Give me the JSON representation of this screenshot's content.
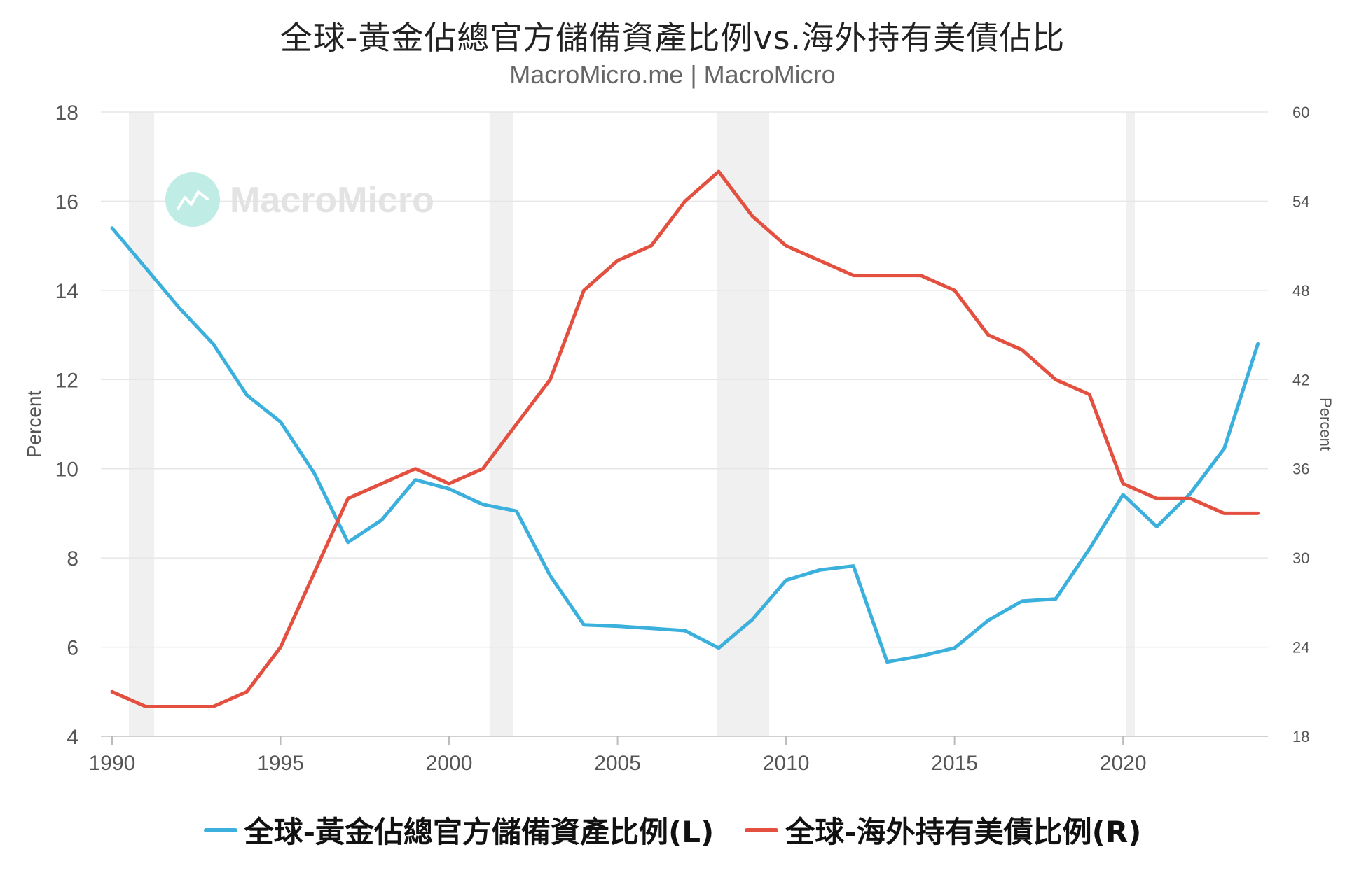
{
  "title": "全球-黃金佔總官方儲備資產比例vs.海外持有美債佔比",
  "subtitle": "MacroMicro.me | MacroMicro",
  "watermark": "MacroMicro",
  "chart_data": {
    "type": "line",
    "x": [
      1990,
      1991,
      1992,
      1993,
      1994,
      1995,
      1996,
      1997,
      1998,
      1999,
      2000,
      2001,
      2002,
      2003,
      2004,
      2005,
      2006,
      2007,
      2008,
      2009,
      2010,
      2011,
      2012,
      2013,
      2014,
      2015,
      2016,
      2017,
      2018,
      2019,
      2020,
      2021,
      2022,
      2023,
      2024
    ],
    "x_ticks": [
      "1990",
      "1995",
      "2000",
      "2005",
      "2010",
      "2015",
      "2020"
    ],
    "x_range": [
      1990,
      2024.3
    ],
    "y_left": {
      "label": "Percent",
      "range": [
        4,
        18
      ],
      "ticks": [
        "4",
        "6",
        "8",
        "10",
        "12",
        "14",
        "16",
        "18"
      ]
    },
    "y_right": {
      "label": "Percent",
      "range": [
        18,
        60
      ],
      "ticks": [
        "18",
        "24",
        "30",
        "36",
        "42",
        "48",
        "54",
        "60"
      ]
    },
    "grid": true,
    "recession_bands": [
      [
        1990.5,
        1991.25
      ],
      [
        2001.2,
        2001.9
      ],
      [
        2007.95,
        2009.5
      ],
      [
        2020.1,
        2020.35
      ]
    ],
    "series": [
      {
        "name": "全球-黃金佔總官方儲備資產比例(L)",
        "axis": "left",
        "color": "#3cb0dd",
        "values": [
          15.4,
          14.5,
          13.6,
          12.8,
          11.65,
          11.05,
          9.9,
          8.35,
          8.85,
          9.75,
          9.55,
          9.2,
          9.05,
          7.6,
          6.5,
          6.47,
          6.42,
          6.37,
          5.98,
          6.62,
          7.5,
          7.73,
          7.82,
          5.67,
          5.8,
          5.98,
          6.6,
          7.03,
          7.08,
          8.2,
          9.42,
          8.7,
          9.45,
          10.45,
          12.8
        ]
      },
      {
        "name": "全球-海外持有美債比例(R)",
        "axis": "right",
        "color": "#e4503f",
        "values": [
          21,
          20,
          20,
          20,
          21,
          24,
          29,
          34,
          35,
          36,
          35,
          36,
          39,
          42,
          48,
          50,
          51,
          54,
          56,
          53,
          51,
          50,
          49,
          49,
          49,
          48,
          45,
          44,
          42,
          41,
          35,
          34,
          34,
          33,
          33
        ]
      }
    ],
    "legend_position": "bottom-center"
  }
}
